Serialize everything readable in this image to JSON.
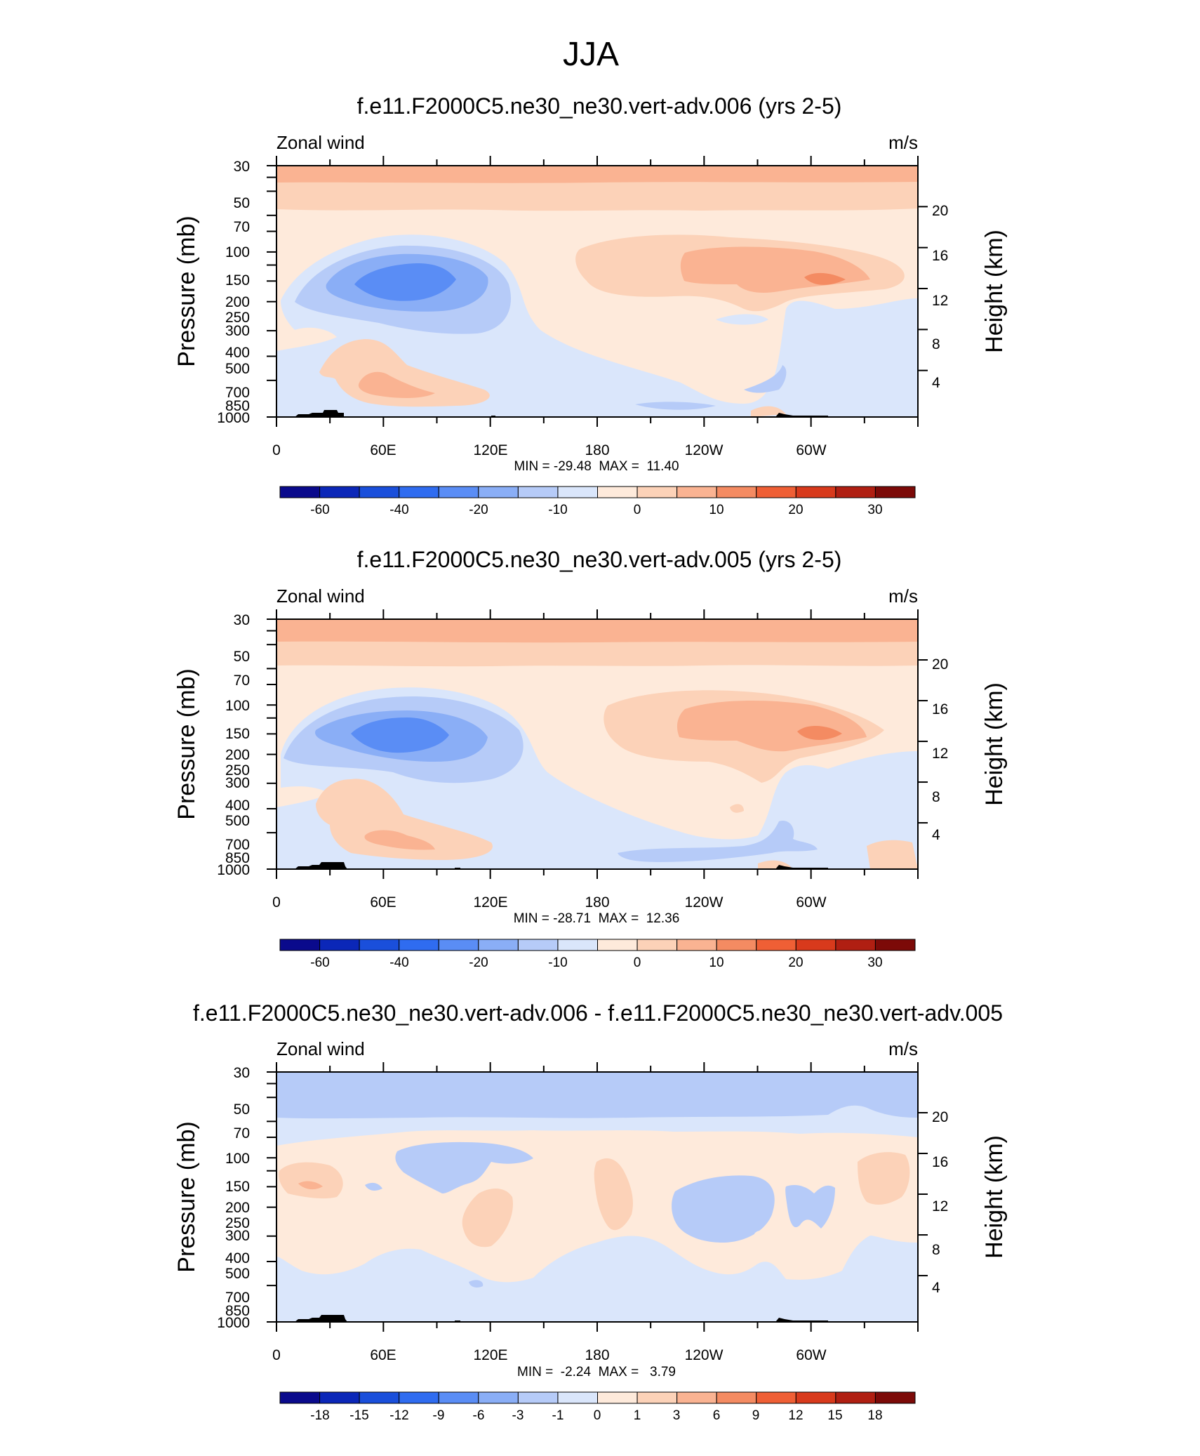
{
  "figure": {
    "title": "JJA"
  },
  "chart_data": [
    {
      "type": "heatmap",
      "title": "f.e11.F2000C5.ne30_ne30.vert-adv.006 (yrs 2-5)",
      "left_label": "Zonal wind",
      "units": "m/s",
      "xlabel": "",
      "ylabel": "Pressure (mb)",
      "ylabel_right": "Height (km)",
      "x_ticks": [
        "0",
        "60E",
        "120E",
        "180",
        "120W",
        "60W"
      ],
      "y_ticks": [
        "30",
        "50",
        "70",
        "100",
        "150",
        "200",
        "250",
        "300",
        "400",
        "500",
        "700",
        "850",
        "1000"
      ],
      "y2_ticks": [
        "20",
        "16",
        "12",
        "8",
        "4"
      ],
      "xlim": [
        0,
        360
      ],
      "ylim": [
        1000,
        30
      ],
      "y_scale": "log",
      "stats": "MIN = -29.48  MAX =  11.40",
      "colorbar_ticks": [
        "-60",
        "-40",
        "-20",
        "-10",
        "0",
        "10",
        "20",
        "30"
      ],
      "features": [
        {
          "kind": "easterly_jet",
          "lon": 75,
          "p": 150,
          "value": -29.48
        },
        {
          "kind": "westerly_jet",
          "lon": 300,
          "p": 150,
          "value": 11.4
        }
      ]
    },
    {
      "type": "heatmap",
      "title": "f.e11.F2000C5.ne30_ne30.vert-adv.005 (yrs 2-5)",
      "left_label": "Zonal wind",
      "units": "m/s",
      "xlabel": "",
      "ylabel": "Pressure (mb)",
      "ylabel_right": "Height (km)",
      "x_ticks": [
        "0",
        "60E",
        "120E",
        "180",
        "120W",
        "60W"
      ],
      "y_ticks": [
        "30",
        "50",
        "70",
        "100",
        "150",
        "200",
        "250",
        "300",
        "400",
        "500",
        "700",
        "850",
        "1000"
      ],
      "y2_ticks": [
        "20",
        "16",
        "12",
        "8",
        "4"
      ],
      "xlim": [
        0,
        360
      ],
      "ylim": [
        1000,
        30
      ],
      "y_scale": "log",
      "stats": "MIN = -28.71  MAX =  12.36",
      "colorbar_ticks": [
        "-60",
        "-40",
        "-20",
        "-10",
        "0",
        "10",
        "20",
        "30"
      ],
      "features": [
        {
          "kind": "easterly_jet",
          "lon": 73,
          "p": 150,
          "value": -28.71
        },
        {
          "kind": "westerly_jet",
          "lon": 305,
          "p": 150,
          "value": 12.36
        }
      ]
    },
    {
      "type": "heatmap",
      "title": "f.e11.F2000C5.ne30_ne30.vert-adv.006 - f.e11.F2000C5.ne30_ne30.vert-adv.005",
      "left_label": "Zonal wind",
      "units": "m/s",
      "xlabel": "",
      "ylabel": "Pressure (mb)",
      "ylabel_right": "Height (km)",
      "x_ticks": [
        "0",
        "60E",
        "120E",
        "180",
        "120W",
        "60W"
      ],
      "y_ticks": [
        "30",
        "50",
        "70",
        "100",
        "150",
        "200",
        "250",
        "300",
        "400",
        "500",
        "700",
        "850",
        "1000"
      ],
      "y2_ticks": [
        "20",
        "16",
        "12",
        "8",
        "4"
      ],
      "xlim": [
        0,
        360
      ],
      "ylim": [
        1000,
        30
      ],
      "y_scale": "log",
      "stats": "MIN =  -2.24  MAX =   3.79",
      "colorbar_ticks": [
        "-18",
        "-15",
        "-12",
        "-9",
        "-6",
        "-3",
        "-1",
        "0",
        "1",
        "3",
        "6",
        "9",
        "12",
        "15",
        "18"
      ],
      "features": [
        {
          "kind": "negative_band",
          "p": 40,
          "value": -2.24
        },
        {
          "kind": "positive_blob",
          "lon": 20,
          "p": 150,
          "value": 3.79
        }
      ]
    }
  ],
  "colors": {
    "palette": [
      "#0a0a8c",
      "#0b27b8",
      "#1a4fdb",
      "#2f6cf0",
      "#5a8df5",
      "#8aaef6",
      "#b6cbf8",
      "#dae6fb",
      "#feeadb",
      "#fcd2b8",
      "#fab392",
      "#f48b62",
      "#ef5f35",
      "#d83a1c",
      "#b01f12",
      "#7c0a08"
    ],
    "axis": "#000000",
    "topography": "#000000"
  }
}
